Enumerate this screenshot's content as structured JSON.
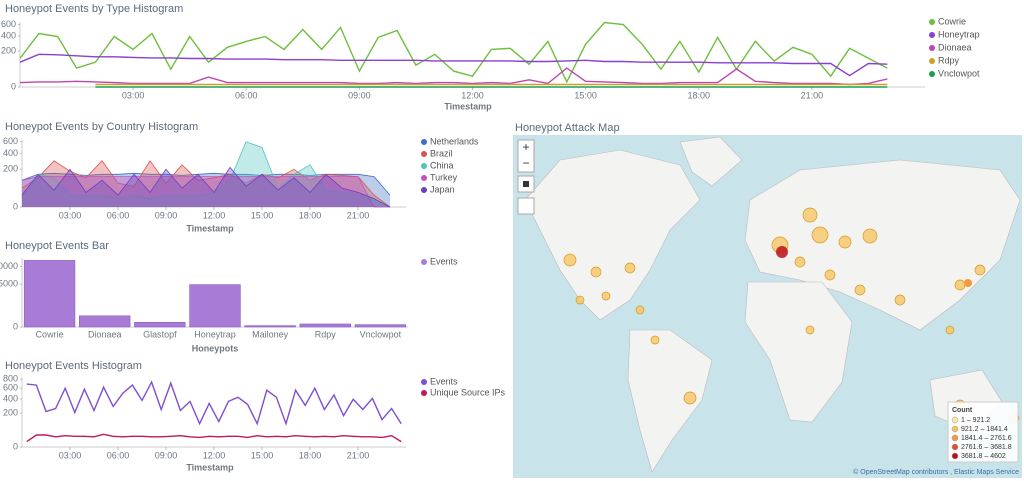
{
  "chart_data": [
    {
      "type": "line",
      "title": "Honeypot Events by Type Histogram",
      "xlabel": "Timestamp",
      "scale": "sqrt",
      "x": [
        0,
        0.5,
        1,
        1.5,
        2,
        2.5,
        3,
        3.5,
        4,
        4.5,
        5,
        5.5,
        6,
        6.5,
        7,
        7.5,
        8,
        8.5,
        9,
        9.5,
        10,
        10.5,
        11,
        11.5,
        12,
        12.5,
        13,
        13.5,
        14,
        14.5,
        15,
        15.5,
        16,
        16.5,
        17,
        17.5,
        18,
        18.5,
        19,
        19.5,
        20,
        20.5,
        21,
        21.5,
        22,
        22.5,
        23
      ],
      "xlim": [
        0,
        24
      ],
      "xticks": [
        {
          "value": 3,
          "label": "03:00"
        },
        {
          "value": 6,
          "label": "06:00"
        },
        {
          "value": 9,
          "label": "09:00"
        },
        {
          "value": 12,
          "label": "12:00"
        },
        {
          "value": 15,
          "label": "15:00"
        },
        {
          "value": 18,
          "label": "18:00"
        },
        {
          "value": 21,
          "label": "21:00"
        }
      ],
      "ylim": [
        0,
        650
      ],
      "yticks": [
        0,
        200,
        400,
        600
      ],
      "series": [
        {
          "name": "Cowrie",
          "color": "#6dbf3c",
          "values": [
            127,
            441,
            393,
            55,
            95,
            393,
            218,
            441,
            49,
            393,
            95,
            242,
            320,
            393,
            218,
            509,
            218,
            544,
            39,
            378,
            491,
            73,
            165,
            39,
            18,
            218,
            230,
            80,
            320,
            4,
            280,
            640,
            600,
            280,
            49,
            320,
            34,
            378,
            49,
            320,
            103,
            242,
            165,
            18,
            230,
            127,
            55
          ]
        },
        {
          "name": "Honeytrap",
          "color": "#8a3fd1",
          "values": [
            95,
            165,
            160,
            150,
            140,
            140,
            135,
            130,
            130,
            125,
            125,
            120,
            120,
            120,
            115,
            115,
            115,
            110,
            110,
            110,
            110,
            110,
            105,
            105,
            105,
            105,
            105,
            100,
            100,
            105,
            110,
            100,
            100,
            95,
            95,
            95,
            95,
            90,
            90,
            90,
            90,
            85,
            85,
            85,
            20,
            85,
            80
          ]
        },
        {
          "name": "Dionaea",
          "color": "#bf45b4",
          "values": [
            3,
            4,
            4,
            5,
            4,
            3,
            2,
            2,
            2,
            2,
            15,
            3,
            3,
            3,
            3,
            3,
            3,
            3,
            2,
            2,
            3,
            2,
            3,
            3,
            2,
            3,
            2,
            8,
            2,
            55,
            5,
            4,
            3,
            2,
            2,
            3,
            3,
            3,
            50,
            5,
            3,
            2,
            2,
            2,
            1,
            2,
            10
          ]
        },
        {
          "name": "Rdpy",
          "color": "#c9a227",
          "values": [
            null,
            null,
            null,
            null,
            1,
            1,
            1,
            1,
            1,
            1,
            1,
            1,
            1,
            1,
            1,
            1,
            1,
            1,
            1,
            1,
            1,
            1,
            1,
            1,
            1,
            1,
            1,
            1,
            1,
            1,
            1,
            1,
            1,
            1,
            1,
            1,
            1,
            1,
            1,
            1,
            1,
            1,
            1,
            1,
            1,
            1,
            1
          ]
        },
        {
          "name": "Vnclowpot",
          "color": "#1f9d55",
          "values": [
            null,
            null,
            null,
            null,
            0,
            0,
            0,
            0,
            0,
            0,
            0,
            0,
            0,
            0,
            0,
            0,
            0,
            0,
            0,
            0,
            0,
            0,
            0,
            0,
            0,
            0,
            0,
            0,
            0,
            0,
            0,
            0,
            0,
            0,
            0,
            0,
            0,
            0,
            0,
            0,
            0,
            0,
            0,
            0,
            0,
            0,
            0
          ]
        }
      ]
    },
    {
      "type": "area",
      "title": "Honeypot Events by Country Histogram",
      "xlabel": "Timestamp",
      "scale": "sqrt",
      "x": [
        0,
        1,
        2,
        3,
        4,
        5,
        6,
        7,
        8,
        9,
        10,
        11,
        12,
        13,
        14,
        15,
        16,
        17,
        18,
        19,
        20,
        21,
        22,
        23
      ],
      "xlim": [
        0,
        24
      ],
      "xticks": [
        {
          "value": 3,
          "label": "03:00"
        },
        {
          "value": 6,
          "label": "06:00"
        },
        {
          "value": 9,
          "label": "09:00"
        },
        {
          "value": 12,
          "label": "12:00"
        },
        {
          "value": 15,
          "label": "15:00"
        },
        {
          "value": 18,
          "label": "18:00"
        },
        {
          "value": 21,
          "label": "21:00"
        }
      ],
      "ylim": [
        0,
        650
      ],
      "yticks": [
        0,
        200,
        400,
        600
      ],
      "series": [
        {
          "name": "Netherlands",
          "color": "#3d6fc2",
          "values": [
            100,
            150,
            160,
            150,
            140,
            150,
            150,
            160,
            150,
            150,
            140,
            150,
            160,
            150,
            150,
            140,
            150,
            150,
            140,
            150,
            150,
            150,
            130,
            20
          ]
        },
        {
          "name": "Brazil",
          "color": "#d9534f",
          "values": [
            50,
            120,
            300,
            180,
            120,
            300,
            80,
            60,
            300,
            80,
            250,
            100,
            120,
            150,
            80,
            150,
            120,
            200,
            100,
            150,
            140,
            130,
            20,
            0
          ]
        },
        {
          "name": "China",
          "color": "#4fc3c0",
          "values": [
            10,
            150,
            120,
            20,
            20,
            20,
            10,
            20,
            10,
            20,
            20,
            20,
            30,
            100,
            600,
            500,
            50,
            150,
            250,
            40,
            30,
            20,
            10,
            0
          ]
        },
        {
          "name": "Turkey",
          "color": "#c74fc0",
          "values": [
            100,
            130,
            130,
            130,
            130,
            130,
            130,
            130,
            130,
            130,
            130,
            130,
            130,
            130,
            130,
            130,
            130,
            130,
            130,
            130,
            130,
            130,
            0,
            0
          ]
        },
        {
          "name": "Japan",
          "color": "#6a3fc2",
          "values": [
            20,
            150,
            40,
            200,
            30,
            100,
            20,
            150,
            30,
            200,
            50,
            150,
            30,
            220,
            60,
            150,
            40,
            120,
            30,
            150,
            50,
            30,
            10,
            0
          ]
        }
      ]
    },
    {
      "type": "bar",
      "title": "Honeypot Events Bar",
      "xlabel": "Honeypots",
      "scale": "sqrt",
      "categories": [
        "Cowrie",
        "Dionaea",
        "Glastopf",
        "Honeytrap",
        "Mailoney",
        "Rdpy",
        "Vnclowpot"
      ],
      "ylim": [
        0,
        13000
      ],
      "yticks": [
        0,
        5000,
        10000
      ],
      "series": [
        {
          "name": "Events",
          "color": "#a77bd6",
          "values": [
            12100,
            340,
            60,
            4900,
            5,
            25,
            15
          ]
        }
      ]
    },
    {
      "type": "line",
      "title": "Honeypot Events Histogram",
      "xlabel": "Timestamp",
      "scale": "sqrt",
      "x": [
        0.3,
        0.9,
        1.5,
        2.1,
        2.7,
        3.3,
        3.9,
        4.5,
        5.1,
        5.7,
        6.3,
        6.9,
        7.5,
        8.1,
        8.7,
        9.3,
        9.9,
        10.5,
        11.1,
        11.7,
        12.3,
        12.9,
        13.5,
        14.1,
        14.7,
        15.3,
        15.9,
        16.5,
        17.1,
        17.7,
        18.3,
        18.9,
        19.5,
        20.1,
        20.7,
        21.3,
        21.9,
        22.5,
        23.1,
        23.7
      ],
      "xlim": [
        0,
        24
      ],
      "xticks": [
        {
          "value": 3,
          "label": "03:00"
        },
        {
          "value": 6,
          "label": "06:00"
        },
        {
          "value": 9,
          "label": "09:00"
        },
        {
          "value": 12,
          "label": "12:00"
        },
        {
          "value": 15,
          "label": "15:00"
        },
        {
          "value": 18,
          "label": "18:00"
        },
        {
          "value": 21,
          "label": "21:00"
        }
      ],
      "ylim": [
        0,
        850
      ],
      "yticks": [
        0,
        200,
        400,
        600,
        800
      ],
      "series": [
        {
          "name": "Events",
          "color": "#7e4fd0",
          "values": [
            686,
            664,
            218,
            257,
            600,
            206,
            580,
            231,
            620,
            286,
            502,
            664,
            377,
            730,
            244,
            708,
            231,
            361,
            94,
            330,
            112,
            361,
            428,
            315,
            94,
            560,
            428,
            94,
            560,
            300,
            600,
            244,
            470,
            171,
            395,
            244,
            410,
            130,
            257,
            94
          ]
        },
        {
          "name": "Unique Source IPs",
          "color": "#c2185b",
          "values": [
            5,
            25,
            25,
            18,
            22,
            20,
            20,
            18,
            28,
            20,
            18,
            20,
            20,
            18,
            18,
            20,
            22,
            18,
            16,
            20,
            18,
            20,
            20,
            16,
            22,
            18,
            20,
            18,
            22,
            20,
            18,
            20,
            18,
            22,
            20,
            18,
            18,
            16,
            22,
            5
          ]
        }
      ]
    }
  ],
  "map": {
    "title": "Honeypot Attack Map",
    "legend_title": "Count",
    "legend": [
      {
        "label": "1 – 921.2",
        "color": "#fde9a6"
      },
      {
        "label": "921.2 – 1841.4",
        "color": "#f7c35c"
      },
      {
        "label": "1841.4 – 2761.6",
        "color": "#f29a3d"
      },
      {
        "label": "2761.6 – 3681.8",
        "color": "#e0512c"
      },
      {
        "label": "3681.8 – 4602",
        "color": "#b8121b"
      }
    ],
    "attribution": "© OpenStreetMap contributors , Elastic Maps Service"
  }
}
